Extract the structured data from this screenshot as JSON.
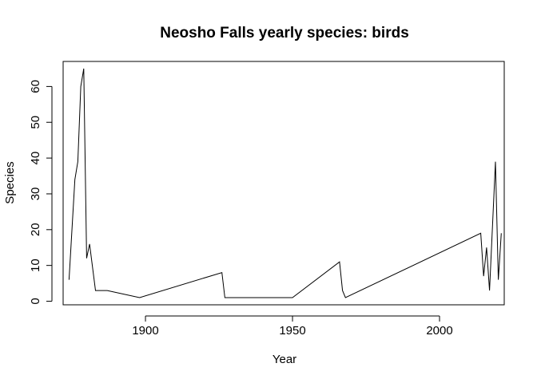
{
  "chart_data": {
    "type": "line",
    "title": "Neosho Falls yearly species: birds",
    "xlabel": "Year",
    "ylabel": "Species",
    "xlim": [
      1872,
      2022
    ],
    "ylim": [
      -1,
      67
    ],
    "xticks": [
      1900,
      1950,
      2000
    ],
    "yticks": [
      0,
      10,
      20,
      30,
      40,
      50,
      60
    ],
    "grid": false,
    "series": [
      {
        "x": [
          1874,
          1876,
          1877,
          1878,
          1879,
          1880,
          1881,
          1883,
          1887,
          1898,
          1926,
          1927,
          1950,
          1966,
          1967,
          1968,
          2014,
          2015,
          2016,
          2017,
          2019,
          2020,
          2021
        ],
        "y": [
          6,
          34,
          39,
          60,
          65,
          12,
          16,
          3,
          3,
          1,
          8,
          1,
          1,
          11,
          3,
          1,
          19,
          7,
          15,
          3,
          39,
          6,
          19
        ]
      }
    ]
  }
}
